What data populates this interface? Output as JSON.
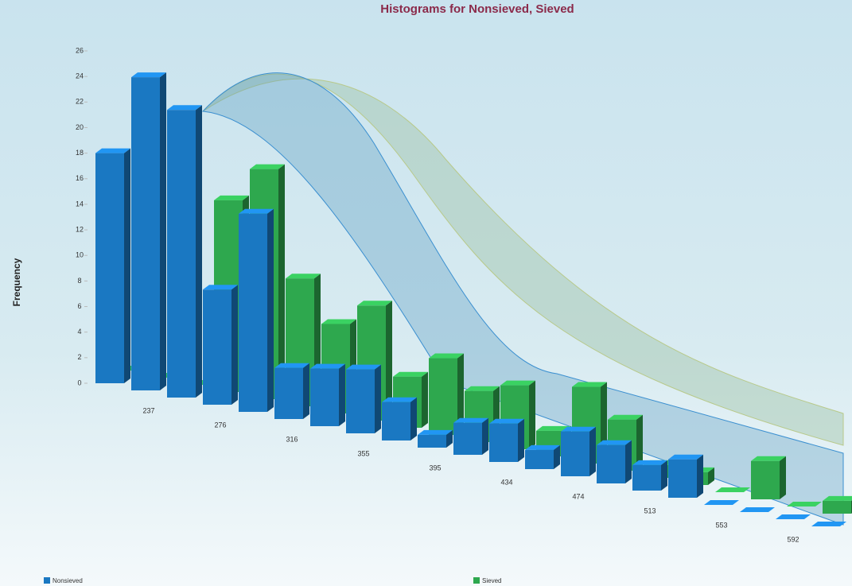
{
  "chart_data": {
    "type": "bar",
    "title": "Histograms for Nonsieved, Sieved",
    "y_label": "Frequency",
    "categories": [
      null,
      "237",
      null,
      "276",
      null,
      "316",
      null,
      "355",
      null,
      "395",
      null,
      "434",
      null,
      "474",
      null,
      "513",
      null,
      "553",
      null,
      "592",
      null
    ],
    "series": [
      {
        "name": "Nonsieved",
        "color": "#1a78c2",
        "values": [
          18,
          24.5,
          22.5,
          9,
          15.5,
          4,
          4.5,
          5,
          3,
          1,
          2.5,
          3,
          1.5,
          3.5,
          3,
          2,
          3,
          0,
          0,
          0,
          0
        ]
      },
      {
        "name": "Sieved",
        "color": "#2ea84e",
        "values": [
          0,
          0,
          0,
          15,
          18,
          10,
          7,
          9,
          4,
          6,
          4,
          5,
          2,
          6,
          4,
          1,
          1,
          0,
          3,
          0,
          1
        ]
      }
    ],
    "ylim": [
      0,
      26
    ],
    "yticks": [
      0,
      2,
      4,
      6,
      8,
      10,
      12,
      14,
      16,
      18,
      20,
      22,
      24,
      26
    ]
  }
}
